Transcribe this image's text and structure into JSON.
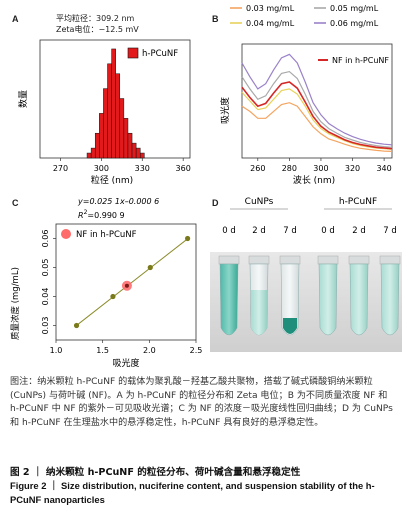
{
  "panels": {
    "a": {
      "letter": "A",
      "stats": [
        {
          "label": "平均粒径：",
          "value": "309.2 nm"
        },
        {
          "label": "Zeta电位：",
          "value": "−12.5 mV"
        }
      ],
      "legend_label": "h-PCuNF",
      "ylabel": "数量",
      "xlabel": "粒径 (nm)",
      "bar_color": "#e31a1c"
    },
    "b": {
      "letter": "B",
      "ylabel": "吸光度",
      "xlabel": "波长 (nm)",
      "legend": [
        {
          "label": "0.03 mg/mL",
          "color": "#f4a460"
        },
        {
          "label": "0.05 mg/mL",
          "color": "#a9a9a9"
        },
        {
          "label": "0.04 mg/mL",
          "color": "#e8d25c"
        },
        {
          "label": "0.06 mg/mL",
          "color": "#9a82c9"
        },
        {
          "label": "NF in h-PCuNF",
          "color": "#d62728"
        }
      ]
    },
    "c": {
      "letter": "C",
      "equation": "y=0.025 1x–0.000 6",
      "r2_label": "R",
      "r2_sup": "2",
      "r2_value": "=0.990 9",
      "legend_label": "NF in h-PCuNF",
      "ylabel": "质量浓度 (mg/mL)",
      "xlabel": "吸光度",
      "point_color": "#ff6b6b",
      "line_color": "#8b8b2a"
    },
    "d": {
      "letter": "D",
      "group_labels": [
        "CuNPs",
        "h-PCuNF"
      ],
      "day_labels": [
        "0 d",
        "2 d",
        "7 d",
        "0 d",
        "2 d",
        "7 d"
      ]
    }
  },
  "chart_data": [
    {
      "type": "bar",
      "title": "",
      "xlabel": "粒径 (nm)",
      "ylabel": "数量",
      "xlim": [
        255,
        365
      ],
      "xticks": [
        270,
        300,
        330,
        360
      ],
      "bin_width": 3,
      "categories": [
        291,
        294,
        297,
        300,
        303,
        306,
        309,
        312,
        315,
        318,
        321,
        324,
        327,
        330
      ],
      "values": [
        1,
        2,
        5,
        9,
        14,
        19,
        22,
        17,
        12,
        8,
        5,
        3,
        2,
        1
      ],
      "series_name": "h-PCuNF"
    },
    {
      "type": "line",
      "xlabel": "波长 (nm)",
      "ylabel": "吸光度",
      "xlim": [
        250,
        345
      ],
      "xticks": [
        260,
        280,
        300,
        320,
        340
      ],
      "x": [
        250,
        255,
        260,
        265,
        270,
        275,
        280,
        285,
        290,
        295,
        300,
        305,
        310,
        315,
        320,
        325,
        330,
        335,
        340,
        345
      ],
      "series": [
        {
          "name": "0.03 mg/mL",
          "values": [
            1.5,
            1.35,
            1.15,
            1.15,
            1.35,
            1.55,
            1.6,
            1.5,
            1.2,
            0.9,
            0.7,
            0.55,
            0.48,
            0.4,
            0.33,
            0.28,
            0.25,
            0.22,
            0.2,
            0.19
          ]
        },
        {
          "name": "0.04 mg/mL",
          "values": [
            1.9,
            1.65,
            1.4,
            1.45,
            1.7,
            1.95,
            2.0,
            1.85,
            1.5,
            1.1,
            0.85,
            0.7,
            0.6,
            0.5,
            0.42,
            0.36,
            0.32,
            0.29,
            0.27,
            0.25
          ]
        },
        {
          "name": "0.05 mg/mL",
          "values": [
            2.35,
            2.0,
            1.7,
            1.8,
            2.15,
            2.45,
            2.5,
            2.3,
            1.85,
            1.35,
            1.05,
            0.85,
            0.72,
            0.6,
            0.52,
            0.45,
            0.4,
            0.36,
            0.33,
            0.31
          ]
        },
        {
          "name": "0.06 mg/mL",
          "values": [
            2.75,
            2.35,
            2.0,
            2.15,
            2.55,
            2.9,
            3.0,
            2.75,
            2.2,
            1.6,
            1.25,
            1.0,
            0.85,
            0.72,
            0.62,
            0.54,
            0.48,
            0.43,
            0.4,
            0.38
          ]
        },
        {
          "name": "NF in h-PCuNF",
          "values": [
            2.05,
            1.75,
            1.5,
            1.58,
            1.88,
            2.15,
            2.2,
            2.02,
            1.62,
            1.2,
            0.92,
            0.75,
            0.64,
            0.53,
            0.45,
            0.39,
            0.35,
            0.31,
            0.29,
            0.27
          ]
        }
      ],
      "ylim": [
        0,
        3.3
      ]
    },
    {
      "type": "scatter",
      "xlabel": "吸光度",
      "ylabel": "质量浓度 (mg/mL)",
      "xlim": [
        1.0,
        2.5
      ],
      "ylim": [
        0.025,
        0.065
      ],
      "xticks": [
        1.0,
        1.5,
        2.0,
        2.5
      ],
      "yticks": [
        0.03,
        0.04,
        0.05,
        0.06
      ],
      "x": [
        1.22,
        1.61,
        2.01,
        2.41
      ],
      "y": [
        0.03,
        0.04,
        0.05,
        0.06
      ],
      "highlight": {
        "name": "NF in h-PCuNF",
        "x": 1.76,
        "y": 0.0437
      },
      "fit": {
        "slope": 0.0251,
        "intercept": -0.0006
      }
    }
  ],
  "caption": {
    "body": "图注：纳米颗粒 h-PCuNF 的载体为聚乳酸－羟基乙酸共聚物，搭载了碱式磷酸铜纳米颗粒 (CuNPs) 与荷叶碱 (NF)。A 为 h-PCuNF 的粒径分布和 Zeta 电位；B 为不同质量浓度 NF 和 h-PCuNF 中 NF 的紫外－可见吸收光谱；C 为 NF 的浓度－吸光度线性回归曲线；D 为 CuNPs 和 h-PCuNF 在生理盐水中的悬浮稳定性，h-PCuNF 具有良好的悬浮稳定性。",
    "title_cn": "图 2 ｜ 纳米颗粒 h-PCuNF 的粒径分布、荷叶碱含量和悬浮稳定性",
    "title_en": "Figure 2 ｜ Size distribution, nuciferine content, and suspension stability of the h-PCuNF nanoparticles"
  }
}
